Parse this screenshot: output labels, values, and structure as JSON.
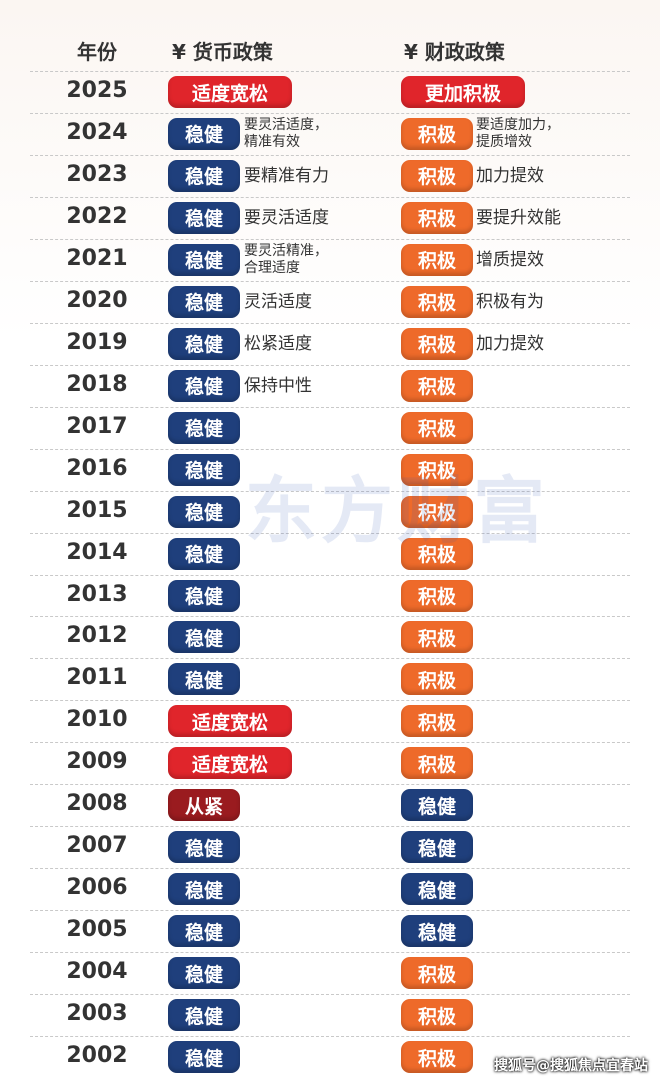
{
  "header": {
    "year": "年份",
    "monetary": "¥ 货币政策",
    "fiscal": "¥ 财政政策"
  },
  "watermark": "东方财富",
  "footer": "搜狐号@搜狐焦点宜春站",
  "rows": [
    {
      "year": "2025",
      "monetary": {
        "label": "适度宽松",
        "color": "#e0252b"
      },
      "fiscal": {
        "label": "更加积极",
        "color": "#e0252b"
      }
    },
    {
      "year": "2024",
      "monetary": {
        "label": "稳健",
        "color": "#1f3f7c",
        "note": [
          "要灵活适度，",
          "精准有效"
        ]
      },
      "fiscal": {
        "label": "积极",
        "color": "#ee6a2a",
        "note": [
          "要适度加力，",
          "提质增效"
        ]
      }
    },
    {
      "year": "2023",
      "monetary": {
        "label": "稳健",
        "color": "#1f3f7c",
        "note": [
          "要精准有力"
        ]
      },
      "fiscal": {
        "label": "积极",
        "color": "#ee6a2a",
        "note": [
          "加力提效"
        ]
      }
    },
    {
      "year": "2022",
      "monetary": {
        "label": "稳健",
        "color": "#1f3f7c",
        "note": [
          "要灵活适度"
        ]
      },
      "fiscal": {
        "label": "积极",
        "color": "#ee6a2a",
        "note": [
          "要提升效能"
        ]
      }
    },
    {
      "year": "2021",
      "monetary": {
        "label": "稳健",
        "color": "#1f3f7c",
        "note": [
          "要灵活精准，",
          "合理适度"
        ]
      },
      "fiscal": {
        "label": "积极",
        "color": "#ee6a2a",
        "note": [
          "增质提效"
        ]
      }
    },
    {
      "year": "2020",
      "monetary": {
        "label": "稳健",
        "color": "#1f3f7c",
        "note": [
          "灵活适度"
        ]
      },
      "fiscal": {
        "label": "积极",
        "color": "#ee6a2a",
        "note": [
          "积极有为"
        ]
      }
    },
    {
      "year": "2019",
      "monetary": {
        "label": "稳健",
        "color": "#1f3f7c",
        "note": [
          "松紧适度"
        ]
      },
      "fiscal": {
        "label": "积极",
        "color": "#ee6a2a",
        "note": [
          "加力提效"
        ]
      }
    },
    {
      "year": "2018",
      "monetary": {
        "label": "稳健",
        "color": "#1f3f7c",
        "note": [
          "保持中性"
        ]
      },
      "fiscal": {
        "label": "积极",
        "color": "#ee6a2a"
      }
    },
    {
      "year": "2017",
      "monetary": {
        "label": "稳健",
        "color": "#1f3f7c"
      },
      "fiscal": {
        "label": "积极",
        "color": "#ee6a2a"
      }
    },
    {
      "year": "2016",
      "monetary": {
        "label": "稳健",
        "color": "#1f3f7c"
      },
      "fiscal": {
        "label": "积极",
        "color": "#ee6a2a"
      }
    },
    {
      "year": "2015",
      "monetary": {
        "label": "稳健",
        "color": "#1f3f7c"
      },
      "fiscal": {
        "label": "积极",
        "color": "#ee6a2a"
      }
    },
    {
      "year": "2014",
      "monetary": {
        "label": "稳健",
        "color": "#1f3f7c"
      },
      "fiscal": {
        "label": "积极",
        "color": "#ee6a2a"
      }
    },
    {
      "year": "2013",
      "monetary": {
        "label": "稳健",
        "color": "#1f3f7c"
      },
      "fiscal": {
        "label": "积极",
        "color": "#ee6a2a"
      }
    },
    {
      "year": "2012",
      "monetary": {
        "label": "稳健",
        "color": "#1f3f7c"
      },
      "fiscal": {
        "label": "积极",
        "color": "#ee6a2a"
      }
    },
    {
      "year": "2011",
      "monetary": {
        "label": "稳健",
        "color": "#1f3f7c"
      },
      "fiscal": {
        "label": "积极",
        "color": "#ee6a2a"
      }
    },
    {
      "year": "2010",
      "monetary": {
        "label": "适度宽松",
        "color": "#e0252b"
      },
      "fiscal": {
        "label": "积极",
        "color": "#ee6a2a"
      }
    },
    {
      "year": "2009",
      "monetary": {
        "label": "适度宽松",
        "color": "#e0252b"
      },
      "fiscal": {
        "label": "积极",
        "color": "#ee6a2a"
      }
    },
    {
      "year": "2008",
      "monetary": {
        "label": "从紧",
        "color": "#9a1b1f"
      },
      "fiscal": {
        "label": "稳健",
        "color": "#1f3f7c"
      }
    },
    {
      "year": "2007",
      "monetary": {
        "label": "稳健",
        "color": "#1f3f7c"
      },
      "fiscal": {
        "label": "稳健",
        "color": "#1f3f7c"
      }
    },
    {
      "year": "2006",
      "monetary": {
        "label": "稳健",
        "color": "#1f3f7c"
      },
      "fiscal": {
        "label": "稳健",
        "color": "#1f3f7c"
      }
    },
    {
      "year": "2005",
      "monetary": {
        "label": "稳健",
        "color": "#1f3f7c"
      },
      "fiscal": {
        "label": "稳健",
        "color": "#1f3f7c"
      }
    },
    {
      "year": "2004",
      "monetary": {
        "label": "稳健",
        "color": "#1f3f7c"
      },
      "fiscal": {
        "label": "积极",
        "color": "#ee6a2a"
      }
    },
    {
      "year": "2003",
      "monetary": {
        "label": "稳健",
        "color": "#1f3f7c"
      },
      "fiscal": {
        "label": "积极",
        "color": "#ee6a2a"
      }
    },
    {
      "year": "2002",
      "monetary": {
        "label": "稳健",
        "color": "#1f3f7c"
      },
      "fiscal": {
        "label": "积极",
        "color": "#ee6a2a"
      }
    }
  ]
}
